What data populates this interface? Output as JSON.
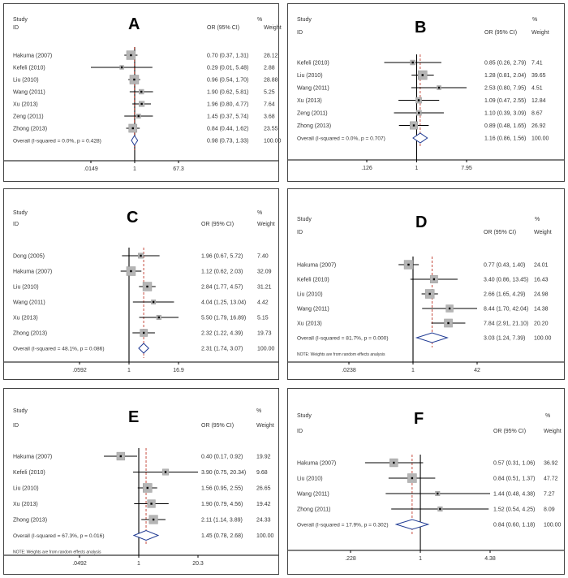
{
  "chart_data": [
    {
      "type": "forest",
      "panel_label": "A",
      "header": {
        "study": "Study",
        "id": "ID",
        "or": "OR (95% CI)",
        "pct": "%",
        "weight": "Weight"
      },
      "x_ticks": [
        ".0149",
        "1",
        "67.3"
      ],
      "xlim": [
        0.0149,
        67.3
      ],
      "null_value": 1,
      "pooled_line": 0.98,
      "studies": [
        {
          "label": "Hakuma (2007)",
          "or": 0.7,
          "lo": 0.37,
          "hi": 1.31,
          "ci_text": "0.70 (0.37, 1.31)",
          "weight": "28.12"
        },
        {
          "label": "Kefeli (2010)",
          "or": 0.29,
          "lo": 0.01,
          "hi": 5.48,
          "ci_text": "0.29 (0.01, 5.48)",
          "weight": "2.88"
        },
        {
          "label": "Liu (2010)",
          "or": 0.96,
          "lo": 0.54,
          "hi": 1.7,
          "ci_text": "0.96 (0.54, 1.70)",
          "weight": "28.88"
        },
        {
          "label": "Wang (2011)",
          "or": 1.9,
          "lo": 0.62,
          "hi": 5.81,
          "ci_text": "1.90 (0.62, 5.81)",
          "weight": "5.25"
        },
        {
          "label": "Xu (2013)",
          "or": 1.96,
          "lo": 0.8,
          "hi": 4.77,
          "ci_text": "1.96 (0.80, 4.77)",
          "weight": "7.64"
        },
        {
          "label": "Zeng (2011)",
          "or": 1.45,
          "lo": 0.37,
          "hi": 5.74,
          "ci_text": "1.45 (0.37, 5.74)",
          "weight": "3.68"
        },
        {
          "label": "Zhong (2013)",
          "or": 0.84,
          "lo": 0.44,
          "hi": 1.62,
          "ci_text": "0.84 (0.44, 1.62)",
          "weight": "23.55"
        }
      ],
      "overall": {
        "label": "Overall  (I-squared = 0.0%, p = 0.428)",
        "or": 0.98,
        "lo": 0.73,
        "hi": 1.33,
        "ci_text": "0.98 (0.73, 1.33)",
        "weight": "100.00"
      },
      "note": ""
    },
    {
      "type": "forest",
      "panel_label": "B",
      "header": {
        "study": "Study",
        "id": "ID",
        "or": "OR (95% CI)",
        "pct": "%",
        "weight": "Weight"
      },
      "x_ticks": [
        ".126",
        "1",
        "7.95"
      ],
      "xlim": [
        0.126,
        7.95
      ],
      "null_value": 1,
      "pooled_line": 1.16,
      "studies": [
        {
          "label": "Kefeli (2010)",
          "or": 0.85,
          "lo": 0.26,
          "hi": 2.79,
          "ci_text": "0.85 (0.26, 2.79)",
          "weight": "7.41"
        },
        {
          "label": "Liu (2010)",
          "or": 1.28,
          "lo": 0.81,
          "hi": 2.04,
          "ci_text": "1.28 (0.81, 2.04)",
          "weight": "39.65"
        },
        {
          "label": "Wang (2011)",
          "or": 2.53,
          "lo": 0.8,
          "hi": 7.95,
          "ci_text": "2.53 (0.80, 7.95)",
          "weight": "4.51"
        },
        {
          "label": "Xu (2013)",
          "or": 1.09,
          "lo": 0.47,
          "hi": 2.55,
          "ci_text": "1.09 (0.47, 2.55)",
          "weight": "12.84"
        },
        {
          "label": "Zeng (2011)",
          "or": 1.1,
          "lo": 0.39,
          "hi": 3.09,
          "ci_text": "1.10 (0.39, 3.09)",
          "weight": "8.67"
        },
        {
          "label": "Zhong (2013)",
          "or": 0.89,
          "lo": 0.48,
          "hi": 1.65,
          "ci_text": "0.89 (0.48, 1.65)",
          "weight": "26.92"
        }
      ],
      "overall": {
        "label": "Overall  (I-squared = 0.0%, p = 0.707)",
        "or": 1.16,
        "lo": 0.86,
        "hi": 1.56,
        "ci_text": "1.16 (0.86, 1.56)",
        "weight": "100.00"
      },
      "note": ""
    },
    {
      "type": "forest",
      "panel_label": "C",
      "header": {
        "study": "Study",
        "id": "ID",
        "or": "OR (95% CI)",
        "pct": "%",
        "weight": "Weight"
      },
      "x_ticks": [
        ".0592",
        "1",
        "16.9"
      ],
      "xlim": [
        0.0592,
        16.9
      ],
      "null_value": 1,
      "pooled_line": 2.31,
      "studies": [
        {
          "label": "Dong (2005)",
          "or": 1.96,
          "lo": 0.67,
          "hi": 5.72,
          "ci_text": "1.96 (0.67, 5.72)",
          "weight": "7.40"
        },
        {
          "label": "Hakuma (2007)",
          "or": 1.12,
          "lo": 0.62,
          "hi": 2.03,
          "ci_text": "1.12 (0.62, 2.03)",
          "weight": "32.09"
        },
        {
          "label": "Liu (2010)",
          "or": 2.84,
          "lo": 1.77,
          "hi": 4.57,
          "ci_text": "2.84 (1.77, 4.57)",
          "weight": "31.21"
        },
        {
          "label": "Wang (2011)",
          "or": 4.04,
          "lo": 1.25,
          "hi": 13.04,
          "ci_text": "4.04 (1.25, 13.04)",
          "weight": "4.42"
        },
        {
          "label": "Xu (2013)",
          "or": 5.5,
          "lo": 1.79,
          "hi": 16.89,
          "ci_text": "5.50 (1.79, 16.89)",
          "weight": "5.15"
        },
        {
          "label": "Zhong (2013)",
          "or": 2.32,
          "lo": 1.22,
          "hi": 4.39,
          "ci_text": "2.32 (1.22, 4.39)",
          "weight": "19.73"
        }
      ],
      "overall": {
        "label": "Overall  (I-squared = 48.1%, p = 0.086)",
        "or": 2.31,
        "lo": 1.74,
        "hi": 3.07,
        "ci_text": "2.31 (1.74, 3.07)",
        "weight": "100.00"
      },
      "note": ""
    },
    {
      "type": "forest",
      "panel_label": "D",
      "header": {
        "study": "Study",
        "id": "ID",
        "or": "OR (95% CI)",
        "pct": "%",
        "weight": "Weight"
      },
      "x_ticks": [
        ".0238",
        "1",
        "42"
      ],
      "xlim": [
        0.0238,
        42
      ],
      "null_value": 1,
      "pooled_line": 3.03,
      "studies": [
        {
          "label": "Hakuma (2007)",
          "or": 0.77,
          "lo": 0.43,
          "hi": 1.4,
          "ci_text": "0.77 (0.43, 1.40)",
          "weight": "24.01"
        },
        {
          "label": "Kefeli (2010)",
          "or": 3.4,
          "lo": 0.86,
          "hi": 13.45,
          "ci_text": "3.40 (0.86, 13.45)",
          "weight": "16.43"
        },
        {
          "label": "Liu (2010)",
          "or": 2.66,
          "lo": 1.65,
          "hi": 4.29,
          "ci_text": "2.66 (1.65, 4.29)",
          "weight": "24.98"
        },
        {
          "label": "Wang (2011)",
          "or": 8.44,
          "lo": 1.7,
          "hi": 42.04,
          "ci_text": "8.44 (1.70, 42.04)",
          "weight": "14.38"
        },
        {
          "label": "Xu (2013)",
          "or": 7.84,
          "lo": 2.91,
          "hi": 21.1,
          "ci_text": "7.84 (2.91, 21.10)",
          "weight": "20.20"
        }
      ],
      "overall": {
        "label": "Overall  (I-squared = 81.7%, p = 0.000)",
        "or": 3.03,
        "lo": 1.24,
        "hi": 7.39,
        "ci_text": "3.03 (1.24, 7.39)",
        "weight": "100.00"
      },
      "note": "NOTE: Weights are from random effects analysis"
    },
    {
      "type": "forest",
      "panel_label": "E",
      "header": {
        "study": "Study",
        "id": "ID",
        "or": "OR (95% CI)",
        "pct": "%",
        "weight": "Weight"
      },
      "x_ticks": [
        ".0492",
        "1",
        "20.3"
      ],
      "xlim": [
        0.0492,
        20.3
      ],
      "null_value": 1,
      "pooled_line": 1.45,
      "studies": [
        {
          "label": "Hakuma (2007)",
          "or": 0.4,
          "lo": 0.17,
          "hi": 0.92,
          "ci_text": "0.40 (0.17, 0.92)",
          "weight": "19.92"
        },
        {
          "label": "Kefeli (2010)",
          "or": 3.9,
          "lo": 0.75,
          "hi": 20.34,
          "ci_text": "3.90 (0.75, 20.34)",
          "weight": "9.68"
        },
        {
          "label": "Liu (2010)",
          "or": 1.56,
          "lo": 0.95,
          "hi": 2.55,
          "ci_text": "1.56 (0.95, 2.55)",
          "weight": "26.65"
        },
        {
          "label": "Xu (2013)",
          "or": 1.9,
          "lo": 0.79,
          "hi": 4.56,
          "ci_text": "1.90 (0.79, 4.56)",
          "weight": "19.42"
        },
        {
          "label": "Zhong (2013)",
          "or": 2.11,
          "lo": 1.14,
          "hi": 3.89,
          "ci_text": "2.11 (1.14, 3.89)",
          "weight": "24.33"
        }
      ],
      "overall": {
        "label": "Overall  (I-squared = 67.3%, p = 0.016)",
        "or": 1.45,
        "lo": 0.78,
        "hi": 2.68,
        "ci_text": "1.45 (0.78, 2.68)",
        "weight": "100.00"
      },
      "note": "NOTE: Weights are from random effects analysis"
    },
    {
      "type": "forest",
      "panel_label": "F",
      "header": {
        "study": "Study",
        "id": "ID",
        "or": "OR (95% CI)",
        "pct": "%",
        "weight": "Weight"
      },
      "x_ticks": [
        ".228",
        "1",
        "4.38"
      ],
      "xlim": [
        0.228,
        4.38
      ],
      "null_value": 1,
      "pooled_line": 0.84,
      "studies": [
        {
          "label": "Hakuma (2007)",
          "or": 0.57,
          "lo": 0.31,
          "hi": 1.06,
          "ci_text": "0.57 (0.31, 1.06)",
          "weight": "36.92"
        },
        {
          "label": "Liu (2010)",
          "or": 0.84,
          "lo": 0.51,
          "hi": 1.37,
          "ci_text": "0.84 (0.51, 1.37)",
          "weight": "47.72"
        },
        {
          "label": "Wang (2011)",
          "or": 1.44,
          "lo": 0.48,
          "hi": 4.38,
          "ci_text": "1.44 (0.48, 4.38)",
          "weight": "7.27"
        },
        {
          "label": "Zhong (2011)",
          "or": 1.52,
          "lo": 0.54,
          "hi": 4.25,
          "ci_text": "1.52 (0.54, 4.25)",
          "weight": "8.09"
        }
      ],
      "overall": {
        "label": "Overall  (I-squared = 17.9%, p = 0.302)",
        "or": 0.84,
        "lo": 0.6,
        "hi": 1.18,
        "ci_text": "0.84 (0.60, 1.18)",
        "weight": "100.00"
      },
      "note": ""
    }
  ]
}
